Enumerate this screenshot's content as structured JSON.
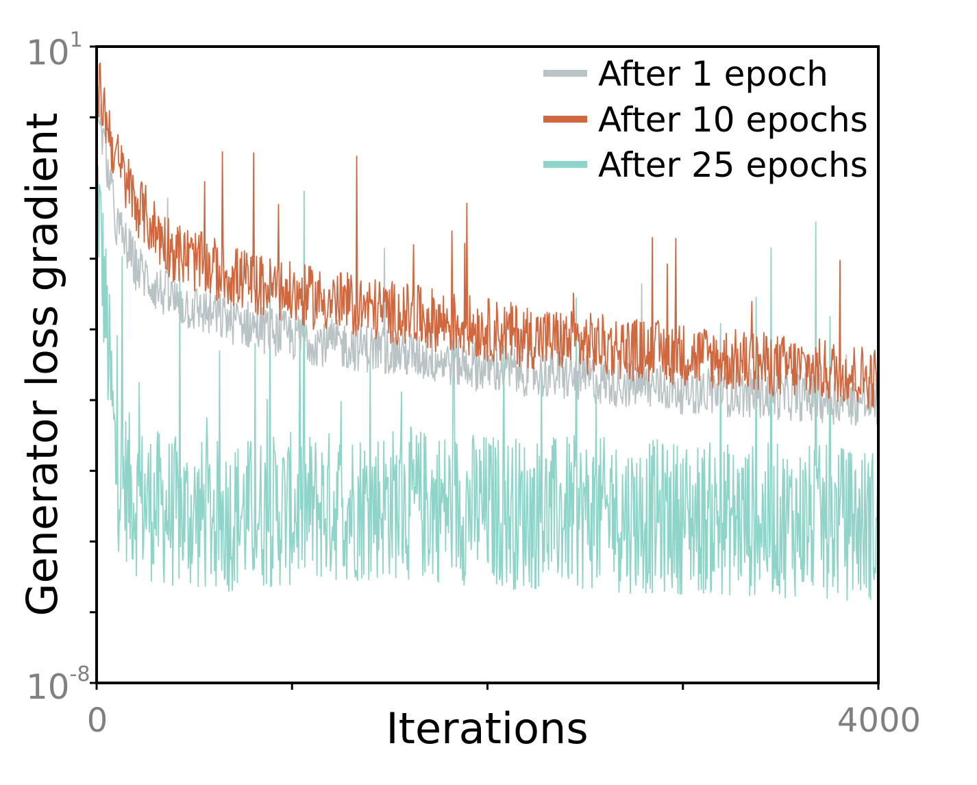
{
  "chart_data": {
    "type": "line",
    "xlabel": "Iterations",
    "ylabel": "Generator loss gradient",
    "xlim": [
      0,
      4000
    ],
    "ylim_exponent": [
      -8,
      1
    ],
    "yscale": "log",
    "x_ticks": [
      0,
      1000,
      2000,
      3000,
      4000
    ],
    "x_tick_labels": {
      "0": "0",
      "4000": "4000"
    },
    "y_ticks_exponent": [
      -8,
      -7,
      -6,
      -5,
      -4,
      -3,
      -2,
      -1,
      0,
      1
    ],
    "y_tick_label_base": "10",
    "y_tick_label_top_exp": "1",
    "y_tick_label_bottom_exp": "-8",
    "grid": false,
    "legend_position": "top-right",
    "series": [
      {
        "name": "After 1 epoch",
        "color": "#b9c3c6",
        "x": [
          0,
          100,
          200,
          300,
          400,
          600,
          800,
          1000,
          1200,
          1500,
          1800,
          2000,
          2200,
          2500,
          2800,
          3000,
          3300,
          3600,
          3800,
          4000
        ],
        "log10_y": [
          0.3,
          -1.5,
          -2.1,
          -2.4,
          -2.6,
          -2.8,
          -2.95,
          -3.1,
          -3.2,
          -3.3,
          -3.45,
          -3.55,
          -3.6,
          -3.7,
          -3.8,
          -3.85,
          -3.9,
          -3.95,
          -4.0,
          -4.05
        ]
      },
      {
        "name": "After 10 epochs",
        "color": "#d0683f",
        "x": [
          0,
          100,
          200,
          300,
          400,
          600,
          800,
          1000,
          1200,
          1500,
          1800,
          2000,
          2200,
          2500,
          2800,
          3000,
          3300,
          3600,
          3800,
          4000
        ],
        "log10_y": [
          0.55,
          -0.6,
          -1.2,
          -1.6,
          -1.9,
          -2.15,
          -2.35,
          -2.5,
          -2.6,
          -2.75,
          -2.9,
          -3.0,
          -3.1,
          -3.2,
          -3.3,
          -3.35,
          -3.45,
          -3.55,
          -3.6,
          -3.7
        ]
      },
      {
        "name": "After 25 epochs",
        "color": "#8fd4c8",
        "x": [
          0,
          100,
          200,
          300,
          400,
          600,
          800,
          1000,
          1200,
          1500,
          1800,
          2000,
          2200,
          2500,
          2800,
          3000,
          3300,
          3600,
          3800,
          4000
        ],
        "log10_y": [
          -0.8,
          -5.0,
          -5.4,
          -5.5,
          -5.6,
          -5.65,
          -5.6,
          -5.55,
          -5.5,
          -5.45,
          -5.5,
          -5.55,
          -5.6,
          -5.6,
          -5.65,
          -5.65,
          -5.7,
          -5.7,
          -5.75,
          -5.75
        ]
      }
    ]
  }
}
